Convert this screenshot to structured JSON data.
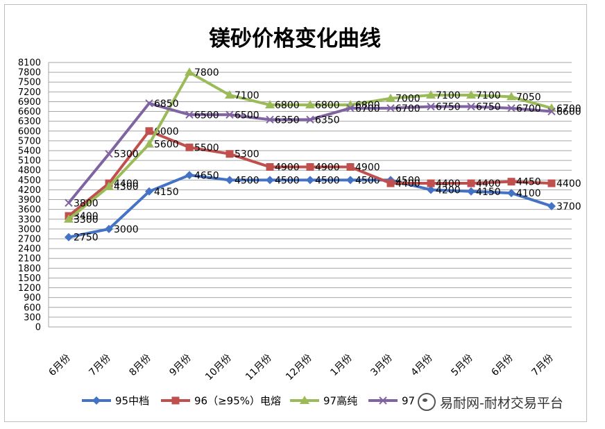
{
  "chart_data": {
    "type": "line",
    "title": "镁砂价格变化曲线",
    "categories": [
      "6月份",
      "7月份",
      "8月份",
      "9月份",
      "10月份",
      "11月份",
      "12月份",
      "1月份",
      "3月份",
      "4月份",
      "5月份",
      "6月份",
      "7月份"
    ],
    "yticks": [
      0,
      300,
      600,
      900,
      1200,
      1500,
      1800,
      2100,
      2400,
      2700,
      3000,
      3300,
      3600,
      3900,
      4200,
      4500,
      4800,
      5100,
      5400,
      5700,
      6000,
      6300,
      6600,
      6900,
      7200,
      7500,
      7800,
      8100
    ],
    "ylim": [
      0,
      8100
    ],
    "grid": true,
    "legend_position": "bottom",
    "series": [
      {
        "name": "95中档",
        "color": "#4472c4",
        "marker": "diamond",
        "values": [
          2750,
          3000,
          4150,
          4650,
          4500,
          4500,
          4500,
          4500,
          4500,
          4200,
          4150,
          4100,
          3700
        ]
      },
      {
        "name": "96（≥95%）电熔",
        "color": "#c0504d",
        "marker": "square",
        "values": [
          3400,
          4400,
          6000,
          5500,
          5300,
          4900,
          4900,
          4900,
          4400,
          4400,
          4400,
          4450,
          4400
        ]
      },
      {
        "name": "97高纯",
        "color": "#9bbb59",
        "marker": "triangle",
        "values": [
          3300,
          4300,
          5600,
          7800,
          7100,
          6800,
          6800,
          6800,
          7000,
          7100,
          7100,
          7050,
          6700
        ]
      },
      {
        "name": "97",
        "color": "#8064a2",
        "marker": "x",
        "values": [
          3800,
          5300,
          6850,
          6500,
          6500,
          6350,
          6350,
          6700,
          6700,
          6750,
          6750,
          6700,
          6600
        ]
      }
    ]
  },
  "watermark": {
    "text": "易耐网-耐材交易平台",
    "icon": "wechat-icon"
  }
}
